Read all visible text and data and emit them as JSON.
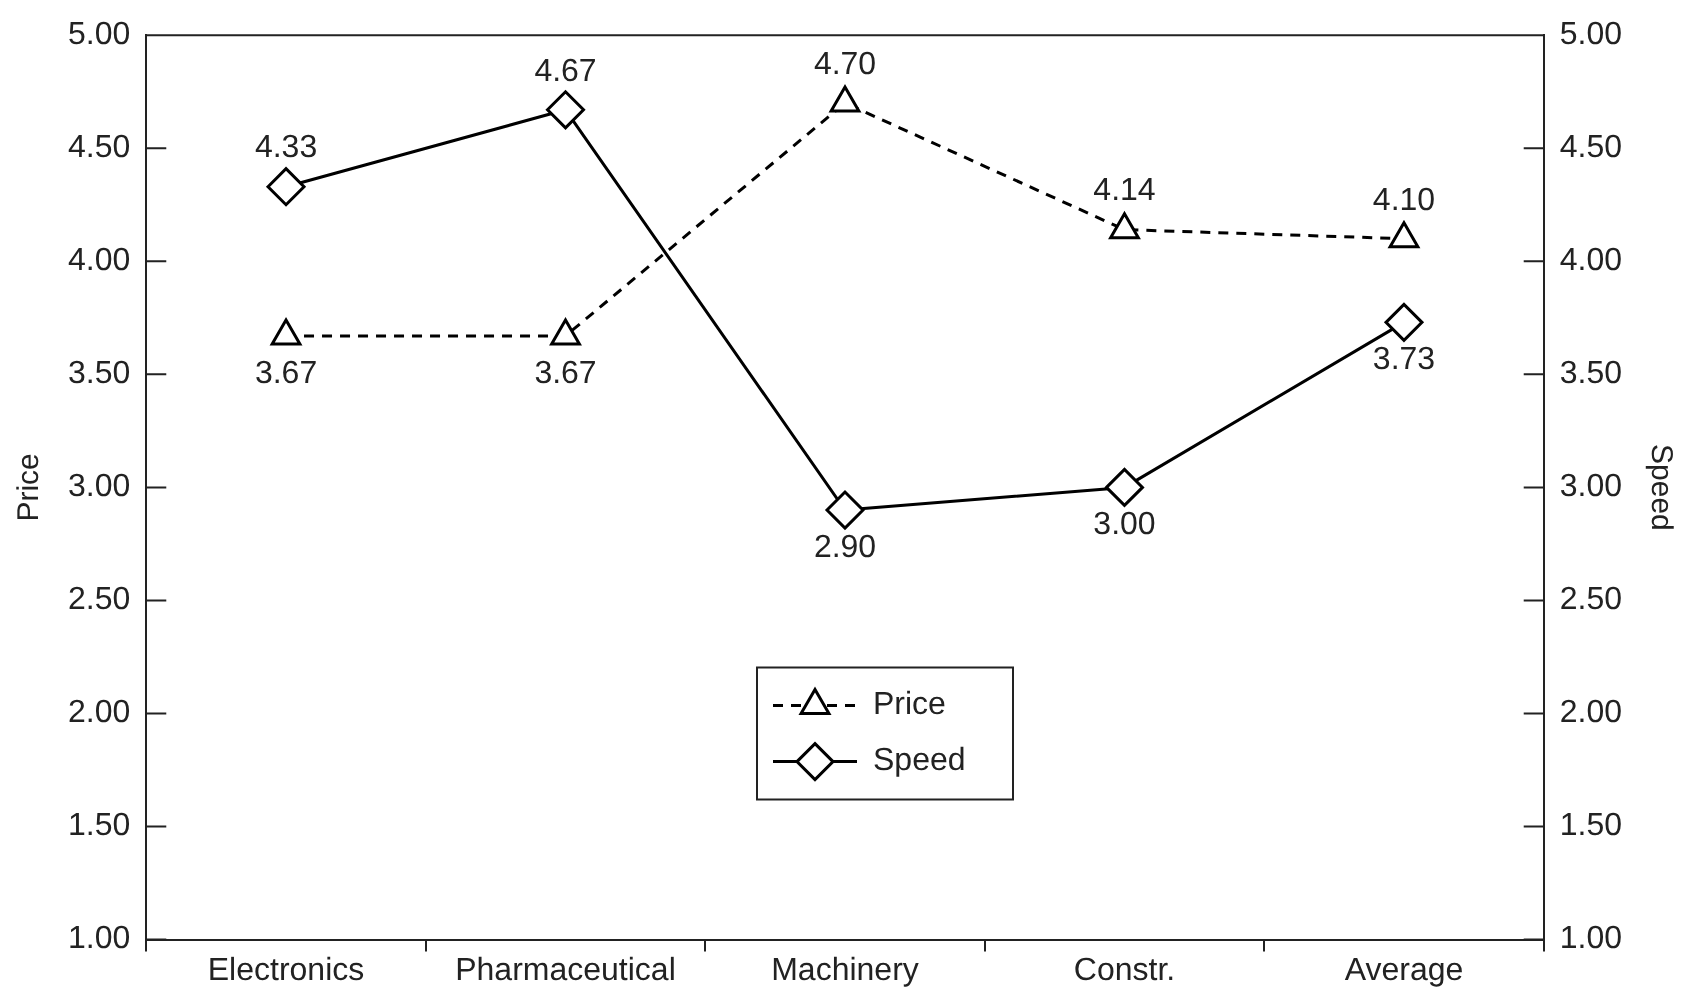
{
  "chart_data": {
    "type": "line",
    "categories": [
      "Electronics",
      "Pharmaceutical",
      "Machinery",
      "Constr.",
      "Average"
    ],
    "series": [
      {
        "name": "Price",
        "color": "#000000",
        "values": [
          3.67,
          3.67,
          4.7,
          4.14,
          4.1
        ],
        "value_labels": [
          "3.67",
          "3.67",
          "4.70",
          "4.14",
          "4.10"
        ],
        "marker": "triangle",
        "line_style": "dashed"
      },
      {
        "name": "Speed",
        "color": "#000000",
        "values": [
          4.33,
          4.67,
          2.9,
          3.0,
          3.73
        ],
        "value_labels": [
          "4.33",
          "4.67",
          "2.90",
          "3.00",
          "3.73"
        ],
        "marker": "diamond",
        "line_style": "solid",
        "axis": "y2"
      }
    ],
    "ylabel": "Price",
    "y2label": "Speed",
    "ylim": [
      1,
      5
    ],
    "yticks": [
      {
        "value": 1,
        "label": "1.00"
      },
      {
        "value": 1.5,
        "label": "1.50"
      },
      {
        "value": 2,
        "label": "2.00"
      },
      {
        "value": 2.5,
        "label": "2.50"
      },
      {
        "value": 3,
        "label": "3.00"
      },
      {
        "value": 3.5,
        "label": "3.50"
      },
      {
        "value": 4,
        "label": "4.00"
      },
      {
        "value": 4.5,
        "label": "4.50"
      },
      {
        "value": 5,
        "label": "5.00"
      }
    ],
    "y2lim": [
      1,
      5
    ],
    "y2ticks": [
      {
        "value": 1,
        "label": "1.00"
      },
      {
        "value": 1.5,
        "label": "1.50"
      },
      {
        "value": 2,
        "label": "2.00"
      },
      {
        "value": 2.5,
        "label": "2.50"
      },
      {
        "value": 3,
        "label": "3.00"
      },
      {
        "value": 3.5,
        "label": "3.50"
      },
      {
        "value": 4,
        "label": "4.00"
      },
      {
        "value": 4.5,
        "label": "4.50"
      },
      {
        "value": 5,
        "label": "5.00"
      }
    ],
    "grid": false,
    "legend": "bottom"
  }
}
